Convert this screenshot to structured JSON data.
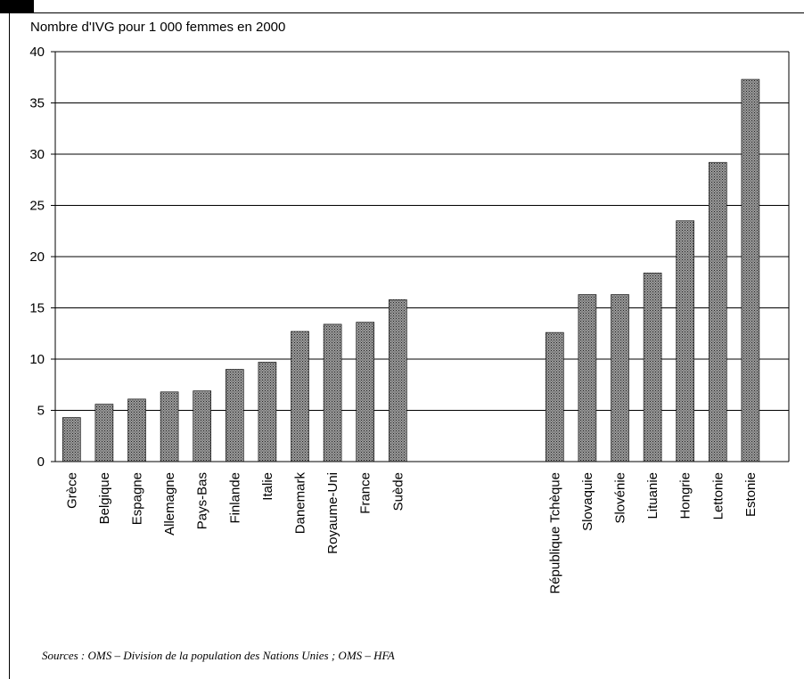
{
  "chart_data": {
    "type": "bar",
    "title": "Nombre d'IVG pour 1 000 femmes en 2000",
    "xlabel": "",
    "ylabel": "",
    "ylim": [
      0,
      40
    ],
    "yticks": [
      0,
      5,
      10,
      15,
      20,
      25,
      30,
      35,
      40
    ],
    "grid": true,
    "legend": "none",
    "bar_fill": "crosshatch-grey",
    "groups": [
      {
        "categories": [
          "Grèce",
          "Belgique",
          "Espagne",
          "Allemagne",
          "Pays-Bas",
          "Finlande",
          "Italie",
          "Danemark",
          "Royaume-Uni",
          "France",
          "Suède"
        ],
        "values": [
          4.3,
          5.6,
          6.1,
          6.8,
          6.9,
          9.0,
          9.7,
          12.7,
          13.4,
          13.6,
          15.8
        ]
      },
      {
        "categories": [
          "République Tchèque",
          "Slovaquie",
          "Slovénie",
          "Lituanie",
          "Hongrie",
          "Lettonie",
          "Estonie"
        ],
        "values": [
          12.6,
          16.3,
          16.3,
          18.4,
          23.5,
          29.2,
          37.3
        ]
      }
    ]
  },
  "source": "Sources : OMS – Division de la population des Nations Unies ; OMS – HFA"
}
